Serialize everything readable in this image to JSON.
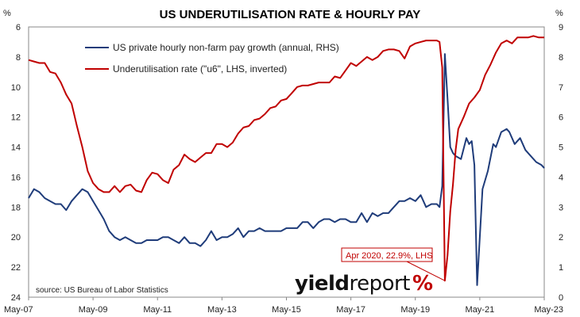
{
  "chart_data": {
    "type": "line",
    "title": "US UNDERUTILISATION RATE & HOURLY PAY",
    "left_unit": "%",
    "right_unit": "%",
    "x_ticks": [
      "May-07",
      "May-09",
      "May-11",
      "May-13",
      "May-15",
      "May-17",
      "May-19",
      "May-21",
      "May-23"
    ],
    "x_range": [
      "2007-05",
      "2023-05"
    ],
    "y_left": {
      "range": [
        6,
        24
      ],
      "inverted": true,
      "ticks": [
        "6",
        "8",
        "10",
        "12",
        "14",
        "16",
        "18",
        "20",
        "22",
        "24"
      ]
    },
    "y_right": {
      "range": [
        0,
        9
      ],
      "ticks": [
        "0",
        "1",
        "2",
        "3",
        "4",
        "5",
        "6",
        "7",
        "8",
        "9"
      ]
    },
    "grid": false,
    "legend_position": "top-left",
    "series": [
      {
        "name": "US private hourly non-farm pay growth (annual, RHS)",
        "axis": "right",
        "color": "#1f3c7a",
        "points": [
          [
            "2007-05",
            3.3
          ],
          [
            "2007-07",
            3.6
          ],
          [
            "2007-09",
            3.5
          ],
          [
            "2007-11",
            3.3
          ],
          [
            "2008-01",
            3.2
          ],
          [
            "2008-03",
            3.1
          ],
          [
            "2008-05",
            3.1
          ],
          [
            "2008-07",
            2.9
          ],
          [
            "2008-09",
            3.2
          ],
          [
            "2008-11",
            3.4
          ],
          [
            "2009-01",
            3.6
          ],
          [
            "2009-03",
            3.5
          ],
          [
            "2009-05",
            3.2
          ],
          [
            "2009-07",
            2.9
          ],
          [
            "2009-09",
            2.6
          ],
          [
            "2009-11",
            2.2
          ],
          [
            "2010-01",
            2.0
          ],
          [
            "2010-03",
            1.9
          ],
          [
            "2010-05",
            2.0
          ],
          [
            "2010-07",
            1.9
          ],
          [
            "2010-09",
            1.8
          ],
          [
            "2010-11",
            1.8
          ],
          [
            "2011-01",
            1.9
          ],
          [
            "2011-03",
            1.9
          ],
          [
            "2011-05",
            1.9
          ],
          [
            "2011-07",
            2.0
          ],
          [
            "2011-09",
            2.0
          ],
          [
            "2011-11",
            1.9
          ],
          [
            "2012-01",
            1.8
          ],
          [
            "2012-03",
            2.0
          ],
          [
            "2012-05",
            1.8
          ],
          [
            "2012-07",
            1.8
          ],
          [
            "2012-09",
            1.7
          ],
          [
            "2012-11",
            1.9
          ],
          [
            "2013-01",
            2.2
          ],
          [
            "2013-03",
            1.9
          ],
          [
            "2013-05",
            2.0
          ],
          [
            "2013-07",
            2.0
          ],
          [
            "2013-09",
            2.1
          ],
          [
            "2013-11",
            2.3
          ],
          [
            "2014-01",
            2.0
          ],
          [
            "2014-03",
            2.2
          ],
          [
            "2014-05",
            2.2
          ],
          [
            "2014-07",
            2.3
          ],
          [
            "2014-09",
            2.2
          ],
          [
            "2014-11",
            2.2
          ],
          [
            "2015-01",
            2.2
          ],
          [
            "2015-03",
            2.2
          ],
          [
            "2015-05",
            2.3
          ],
          [
            "2015-07",
            2.3
          ],
          [
            "2015-09",
            2.3
          ],
          [
            "2015-11",
            2.5
          ],
          [
            "2016-01",
            2.5
          ],
          [
            "2016-03",
            2.3
          ],
          [
            "2016-05",
            2.5
          ],
          [
            "2016-07",
            2.6
          ],
          [
            "2016-09",
            2.6
          ],
          [
            "2016-11",
            2.5
          ],
          [
            "2017-01",
            2.6
          ],
          [
            "2017-03",
            2.6
          ],
          [
            "2017-05",
            2.5
          ],
          [
            "2017-07",
            2.5
          ],
          [
            "2017-09",
            2.8
          ],
          [
            "2017-11",
            2.5
          ],
          [
            "2018-01",
            2.8
          ],
          [
            "2018-03",
            2.7
          ],
          [
            "2018-05",
            2.8
          ],
          [
            "2018-07",
            2.8
          ],
          [
            "2018-09",
            3.0
          ],
          [
            "2018-11",
            3.2
          ],
          [
            "2019-01",
            3.2
          ],
          [
            "2019-03",
            3.3
          ],
          [
            "2019-05",
            3.2
          ],
          [
            "2019-07",
            3.4
          ],
          [
            "2019-09",
            3.0
          ],
          [
            "2019-11",
            3.1
          ],
          [
            "2020-01",
            3.1
          ],
          [
            "2020-02",
            3.0
          ],
          [
            "2020-03",
            3.7
          ],
          [
            "2020-04",
            8.1
          ],
          [
            "2020-05",
            6.6
          ],
          [
            "2020-06",
            5.0
          ],
          [
            "2020-07",
            4.8
          ],
          [
            "2020-08",
            4.7
          ],
          [
            "2020-10",
            4.6
          ],
          [
            "2020-12",
            5.3
          ],
          [
            "2021-01",
            5.1
          ],
          [
            "2021-02",
            5.2
          ],
          [
            "2021-03",
            4.4
          ],
          [
            "2021-04",
            0.4
          ],
          [
            "2021-05",
            2.0
          ],
          [
            "2021-06",
            3.6
          ],
          [
            "2021-08",
            4.2
          ],
          [
            "2021-10",
            5.1
          ],
          [
            "2021-11",
            5.0
          ],
          [
            "2022-01",
            5.5
          ],
          [
            "2022-03",
            5.6
          ],
          [
            "2022-04",
            5.5
          ],
          [
            "2022-06",
            5.1
          ],
          [
            "2022-08",
            5.3
          ],
          [
            "2022-10",
            4.9
          ],
          [
            "2022-12",
            4.7
          ],
          [
            "2023-02",
            4.5
          ],
          [
            "2023-04",
            4.4
          ],
          [
            "2023-05",
            4.3
          ]
        ]
      },
      {
        "name": "Underutilisation rate (\"u6\", LHS, inverted)",
        "axis": "left",
        "color": "#c00000",
        "points": [
          [
            "2007-05",
            8.2
          ],
          [
            "2007-07",
            8.3
          ],
          [
            "2007-09",
            8.4
          ],
          [
            "2007-11",
            8.4
          ],
          [
            "2008-01",
            9.0
          ],
          [
            "2008-03",
            9.1
          ],
          [
            "2008-05",
            9.7
          ],
          [
            "2008-07",
            10.5
          ],
          [
            "2008-09",
            11.1
          ],
          [
            "2008-11",
            12.6
          ],
          [
            "2009-01",
            14.0
          ],
          [
            "2009-03",
            15.6
          ],
          [
            "2009-05",
            16.4
          ],
          [
            "2009-07",
            16.8
          ],
          [
            "2009-09",
            17.0
          ],
          [
            "2009-11",
            17.0
          ],
          [
            "2010-01",
            16.6
          ],
          [
            "2010-03",
            17.0
          ],
          [
            "2010-05",
            16.6
          ],
          [
            "2010-07",
            16.5
          ],
          [
            "2010-09",
            16.9
          ],
          [
            "2010-11",
            17.0
          ],
          [
            "2011-01",
            16.2
          ],
          [
            "2011-03",
            15.7
          ],
          [
            "2011-05",
            15.8
          ],
          [
            "2011-07",
            16.2
          ],
          [
            "2011-09",
            16.4
          ],
          [
            "2011-11",
            15.5
          ],
          [
            "2012-01",
            15.2
          ],
          [
            "2012-03",
            14.5
          ],
          [
            "2012-05",
            14.8
          ],
          [
            "2012-07",
            15.0
          ],
          [
            "2012-09",
            14.7
          ],
          [
            "2012-11",
            14.4
          ],
          [
            "2013-01",
            14.4
          ],
          [
            "2013-03",
            13.8
          ],
          [
            "2013-05",
            13.8
          ],
          [
            "2013-07",
            14.0
          ],
          [
            "2013-09",
            13.7
          ],
          [
            "2013-11",
            13.1
          ],
          [
            "2014-01",
            12.7
          ],
          [
            "2014-03",
            12.6
          ],
          [
            "2014-05",
            12.2
          ],
          [
            "2014-07",
            12.1
          ],
          [
            "2014-09",
            11.8
          ],
          [
            "2014-11",
            11.4
          ],
          [
            "2015-01",
            11.3
          ],
          [
            "2015-03",
            10.9
          ],
          [
            "2015-05",
            10.8
          ],
          [
            "2015-07",
            10.4
          ],
          [
            "2015-09",
            10.0
          ],
          [
            "2015-11",
            9.9
          ],
          [
            "2016-01",
            9.9
          ],
          [
            "2016-03",
            9.8
          ],
          [
            "2016-05",
            9.7
          ],
          [
            "2016-07",
            9.7
          ],
          [
            "2016-09",
            9.7
          ],
          [
            "2016-11",
            9.3
          ],
          [
            "2017-01",
            9.4
          ],
          [
            "2017-03",
            8.9
          ],
          [
            "2017-05",
            8.4
          ],
          [
            "2017-07",
            8.6
          ],
          [
            "2017-09",
            8.3
          ],
          [
            "2017-11",
            8.0
          ],
          [
            "2018-01",
            8.2
          ],
          [
            "2018-03",
            8.0
          ],
          [
            "2018-05",
            7.6
          ],
          [
            "2018-07",
            7.5
          ],
          [
            "2018-09",
            7.5
          ],
          [
            "2018-11",
            7.6
          ],
          [
            "2019-01",
            8.1
          ],
          [
            "2019-03",
            7.3
          ],
          [
            "2019-05",
            7.1
          ],
          [
            "2019-07",
            7.0
          ],
          [
            "2019-09",
            6.9
          ],
          [
            "2019-11",
            6.9
          ],
          [
            "2020-01",
            6.9
          ],
          [
            "2020-02",
            7.0
          ],
          [
            "2020-03",
            8.7
          ],
          [
            "2020-04",
            22.9
          ],
          [
            "2020-05",
            21.2
          ],
          [
            "2020-06",
            18.3
          ],
          [
            "2020-07",
            16.5
          ],
          [
            "2020-08",
            14.2
          ],
          [
            "2020-09",
            12.8
          ],
          [
            "2020-11",
            12.0
          ],
          [
            "2021-01",
            11.1
          ],
          [
            "2021-03",
            10.7
          ],
          [
            "2021-05",
            10.2
          ],
          [
            "2021-07",
            9.2
          ],
          [
            "2021-09",
            8.5
          ],
          [
            "2021-11",
            7.7
          ],
          [
            "2022-01",
            7.1
          ],
          [
            "2022-03",
            6.9
          ],
          [
            "2022-05",
            7.1
          ],
          [
            "2022-07",
            6.7
          ],
          [
            "2022-09",
            6.7
          ],
          [
            "2022-11",
            6.7
          ],
          [
            "2023-01",
            6.6
          ],
          [
            "2023-03",
            6.7
          ],
          [
            "2023-05",
            6.7
          ]
        ]
      }
    ],
    "annotation": {
      "text": "Apr 2020, 22.9%, LHS",
      "point": [
        "2020-04",
        22.9
      ],
      "axis": "left"
    }
  },
  "source": "source: US Bureau of Labor Statistics",
  "logo": {
    "part1": "yield",
    "part2": "report",
    "mark": "%"
  }
}
